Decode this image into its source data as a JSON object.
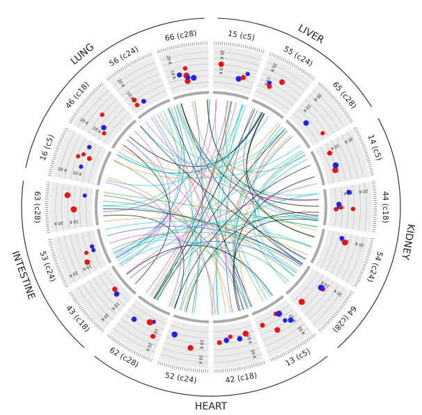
{
  "groups": [
    {
      "label": "LIVER",
      "segments": [
        "15 (c5)",
        "55 (c24)",
        "65 (c28)"
      ]
    },
    {
      "label": "KIDNEY",
      "segments": [
        "14 (c5)",
        "44 (c18)",
        "54 (c24)",
        "64 (c28)"
      ]
    },
    {
      "label": "HEART",
      "segments": [
        "13 (c5)",
        "42 (c18)",
        "52 (c24)",
        "62 (c28)"
      ]
    },
    {
      "label": "INTESTINE",
      "segments": [
        "43 (c18)",
        "53 (c24)",
        "63 (c28)"
      ]
    },
    {
      "label": "LUNG",
      "segments": [
        "16 (c5)",
        "46 (c18)",
        "56 (c24)",
        "66 (c28)"
      ]
    }
  ],
  "axis_labels": [
    "10 K",
    "20 K"
  ]
}
